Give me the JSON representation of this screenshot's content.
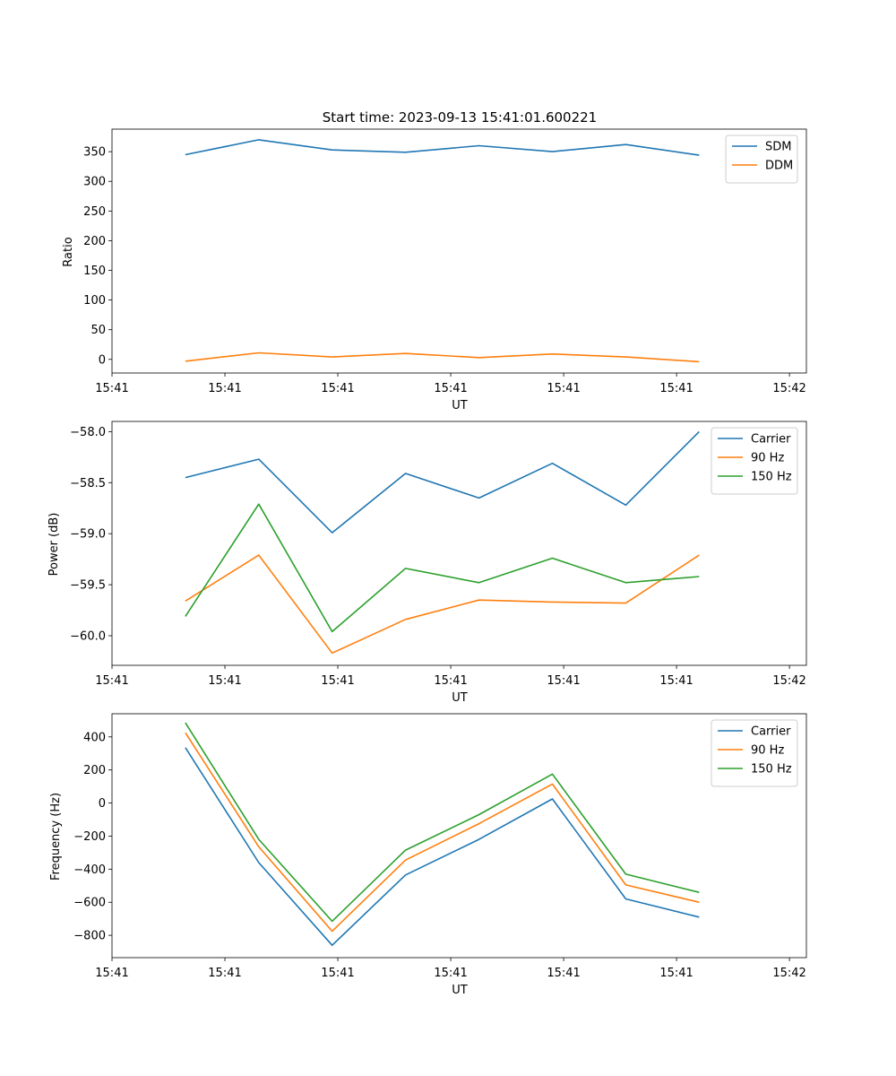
{
  "chart_data": [
    {
      "type": "line",
      "title": "Start time: 2023-09-13 15:41:01.600221",
      "xlabel": "UT",
      "ylabel": "Ratio",
      "xlim": [
        -0.15,
        6.0
      ],
      "ylim": [
        -23,
        388
      ],
      "xticks": [
        -0.15,
        0.85,
        1.85,
        2.85,
        3.85,
        4.85,
        5.85
      ],
      "xtick_labels": [
        "15:41",
        "15:41",
        "15:41",
        "15:41",
        "15:41",
        "15:41",
        "15:42"
      ],
      "yticks": [
        0,
        50,
        100,
        150,
        200,
        250,
        300,
        350
      ],
      "ytick_labels": [
        "0",
        "50",
        "100",
        "150",
        "200",
        "250",
        "300",
        "350"
      ],
      "x": [
        0.5,
        1.15,
        1.8,
        2.45,
        3.1,
        3.75,
        4.4,
        5.05
      ],
      "legend_position": "top-right",
      "series": [
        {
          "name": "SDM",
          "color": "#1f77b4",
          "values": [
            345,
            370,
            353,
            349,
            360,
            350,
            362,
            344
          ]
        },
        {
          "name": "DDM",
          "color": "#ff7f0e",
          "values": [
            -3,
            11,
            4,
            10,
            3,
            9,
            4,
            -4
          ]
        }
      ]
    },
    {
      "type": "line",
      "title": "",
      "xlabel": "UT",
      "ylabel": "Power (dB)",
      "xlim": [
        -0.15,
        6.0
      ],
      "ylim": [
        -60.29,
        -57.9
      ],
      "xticks": [
        -0.15,
        0.85,
        1.85,
        2.85,
        3.85,
        4.85,
        5.85
      ],
      "xtick_labels": [
        "15:41",
        "15:41",
        "15:41",
        "15:41",
        "15:41",
        "15:41",
        "15:42"
      ],
      "yticks": [
        -60.0,
        -59.5,
        -59.0,
        -58.5,
        -58.0
      ],
      "ytick_labels": [
        "−60.0",
        "−59.5",
        "−59.0",
        "−58.5",
        "−58.0"
      ],
      "x": [
        0.5,
        1.15,
        1.8,
        2.45,
        3.1,
        3.75,
        4.4,
        5.05
      ],
      "legend_position": "top-right",
      "series": [
        {
          "name": "Carrier",
          "color": "#1f77b4",
          "values": [
            -58.45,
            -58.27,
            -58.99,
            -58.41,
            -58.65,
            -58.31,
            -58.72,
            -58.0
          ]
        },
        {
          "name": "90 Hz",
          "color": "#ff7f0e",
          "values": [
            -59.66,
            -59.21,
            -60.17,
            -59.84,
            -59.65,
            -59.67,
            -59.68,
            -59.21
          ]
        },
        {
          "name": "150 Hz",
          "color": "#2ca02c",
          "values": [
            -59.81,
            -58.71,
            -59.96,
            -59.34,
            -59.48,
            -59.24,
            -59.48,
            -59.42
          ]
        }
      ]
    },
    {
      "type": "line",
      "title": "",
      "xlabel": "UT",
      "ylabel": "Frequency (Hz)",
      "xlim": [
        -0.15,
        6.0
      ],
      "ylim": [
        -935,
        540
      ],
      "xticks": [
        -0.15,
        0.85,
        1.85,
        2.85,
        3.85,
        4.85,
        5.85
      ],
      "xtick_labels": [
        "15:41",
        "15:41",
        "15:41",
        "15:41",
        "15:41",
        "15:41",
        "15:42"
      ],
      "yticks": [
        -800,
        -600,
        -400,
        -200,
        0,
        200,
        400
      ],
      "ytick_labels": [
        "−800",
        "−600",
        "−400",
        "−200",
        "0",
        "200",
        "400"
      ],
      "x": [
        0.5,
        1.15,
        1.8,
        2.45,
        3.1,
        3.75,
        4.4,
        5.05
      ],
      "legend_position": "top-right",
      "series": [
        {
          "name": "Carrier",
          "color": "#1f77b4",
          "values": [
            335,
            -360,
            -860,
            -435,
            -220,
            25,
            -580,
            -690
          ]
        },
        {
          "name": "90 Hz",
          "color": "#ff7f0e",
          "values": [
            425,
            -265,
            -775,
            -345,
            -125,
            115,
            -495,
            -600
          ]
        },
        {
          "name": "150 Hz",
          "color": "#2ca02c",
          "values": [
            485,
            -220,
            -715,
            -285,
            -70,
            175,
            -430,
            -540
          ]
        }
      ]
    }
  ]
}
